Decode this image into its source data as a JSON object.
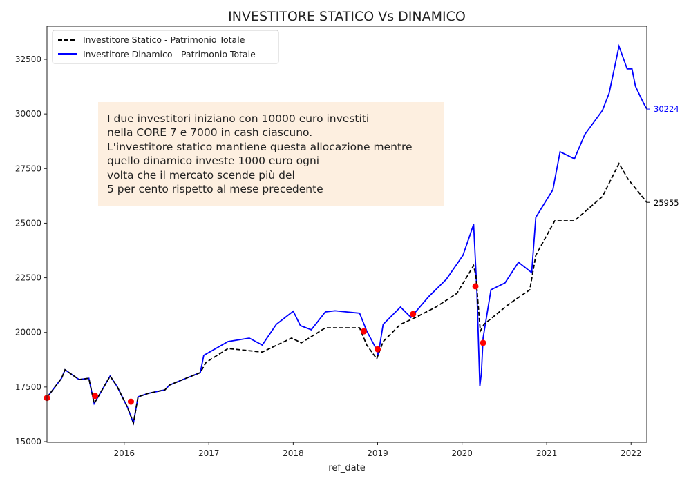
{
  "chart_data": {
    "type": "line",
    "title": "INVESTITORE STATICO Vs DINAMICO",
    "xlabel": "ref_date",
    "ylabel": "",
    "xlim": [
      "2015-02-01",
      "2022-03-10"
    ],
    "ylim": [
      15000,
      34000
    ],
    "x_ticks": [
      "2016",
      "2017",
      "2018",
      "2019",
      "2020",
      "2021",
      "2022"
    ],
    "y_ticks": [
      15000,
      17500,
      20000,
      22500,
      25000,
      27500,
      30000,
      32500
    ],
    "grid": false,
    "legend_placement": "top-left",
    "annotation": [
      "I due investitori iniziano con 10000 euro investiti",
      "nella CORE 7 e 7000 in cash ciascuno.",
      "L'investitore statico mantiene questa allocazione mentre",
      "quello dinamico investe 1000 euro ogni",
      "volta che il mercato scende più del",
      "5 per cento rispetto al mese precedente"
    ],
    "annotation_bg": "#fdefe0",
    "series": [
      {
        "name": "Investitore Statico - Patrimonio Totale",
        "color": "#000000",
        "style": "dashed",
        "end_label": "25955",
        "points": [
          [
            "2015-02-01",
            17020
          ],
          [
            "2015-04-05",
            17900
          ],
          [
            "2015-04-20",
            18290
          ],
          [
            "2015-06-20",
            17840
          ],
          [
            "2015-08-01",
            17900
          ],
          [
            "2015-08-24",
            16740
          ],
          [
            "2015-09-10",
            17050
          ],
          [
            "2015-11-01",
            18000
          ],
          [
            "2015-12-01",
            17530
          ],
          [
            "2016-01-15",
            16580
          ],
          [
            "2016-02-10",
            15850
          ],
          [
            "2016-03-01",
            17050
          ],
          [
            "2016-04-15",
            17210
          ],
          [
            "2016-06-25",
            17370
          ],
          [
            "2016-07-15",
            17590
          ],
          [
            "2016-09-25",
            17900
          ],
          [
            "2016-11-25",
            18160
          ],
          [
            "2016-12-20",
            18630
          ],
          [
            "2017-03-25",
            19260
          ],
          [
            "2017-08-20",
            19100
          ],
          [
            "2017-12-25",
            19740
          ],
          [
            "2018-02-05",
            19520
          ],
          [
            "2018-05-20",
            20210
          ],
          [
            "2018-10-15",
            20210
          ],
          [
            "2018-11-15",
            19420
          ],
          [
            "2018-12-28",
            18790
          ],
          [
            "2019-01-25",
            19580
          ],
          [
            "2019-04-10",
            20370
          ],
          [
            "2019-06-15",
            20690
          ],
          [
            "2019-09-10",
            21160
          ],
          [
            "2019-12-10",
            21790
          ],
          [
            "2020-02-20",
            23060
          ],
          [
            "2020-03-01",
            22590
          ],
          [
            "2020-03-20",
            20060
          ],
          [
            "2020-04-05",
            20370
          ],
          [
            "2020-07-25",
            21320
          ],
          [
            "2020-10-20",
            21950
          ],
          [
            "2020-11-15",
            23530
          ],
          [
            "2021-02-05",
            25110
          ],
          [
            "2021-05-01",
            25110
          ],
          [
            "2021-08-30",
            26220
          ],
          [
            "2021-11-10",
            27730
          ],
          [
            "2021-12-20",
            27000
          ],
          [
            "2022-01-20",
            26600
          ],
          [
            "2022-03-10",
            25955
          ]
        ]
      },
      {
        "name": "Investitore Dinamico - Patrimonio Totale",
        "color": "#0000ff",
        "style": "solid",
        "end_label": "30224",
        "points": [
          [
            "2015-02-01",
            17020
          ],
          [
            "2015-04-05",
            17900
          ],
          [
            "2015-04-20",
            18290
          ],
          [
            "2015-06-20",
            17840
          ],
          [
            "2015-08-01",
            17900
          ],
          [
            "2015-08-24",
            16740
          ],
          [
            "2015-09-10",
            17050
          ],
          [
            "2015-11-01",
            18000
          ],
          [
            "2015-12-01",
            17530
          ],
          [
            "2016-01-15",
            16580
          ],
          [
            "2016-02-10",
            15850
          ],
          [
            "2016-03-01",
            17050
          ],
          [
            "2016-04-15",
            17210
          ],
          [
            "2016-06-25",
            17370
          ],
          [
            "2016-07-15",
            17590
          ],
          [
            "2016-09-25",
            17900
          ],
          [
            "2016-11-25",
            18160
          ],
          [
            "2016-12-10",
            18950
          ],
          [
            "2017-03-25",
            19580
          ],
          [
            "2017-06-25",
            19740
          ],
          [
            "2017-08-20",
            19420
          ],
          [
            "2017-10-20",
            20370
          ],
          [
            "2018-01-01",
            20970
          ],
          [
            "2018-02-01",
            20310
          ],
          [
            "2018-03-20",
            20120
          ],
          [
            "2018-05-20",
            20940
          ],
          [
            "2018-07-01",
            20990
          ],
          [
            "2018-10-15",
            20880
          ],
          [
            "2018-11-15",
            20060
          ],
          [
            "2018-12-25",
            19260
          ],
          [
            "2019-01-03",
            18950
          ],
          [
            "2019-01-25",
            20370
          ],
          [
            "2019-04-10",
            21160
          ],
          [
            "2019-05-25",
            20690
          ],
          [
            "2019-08-10",
            21640
          ],
          [
            "2019-10-25",
            22430
          ],
          [
            "2020-01-05",
            23530
          ],
          [
            "2020-02-05",
            24480
          ],
          [
            "2020-02-20",
            24950
          ],
          [
            "2020-03-05",
            21950
          ],
          [
            "2020-03-18",
            17530
          ],
          [
            "2020-03-25",
            18160
          ],
          [
            "2020-04-01",
            19740
          ],
          [
            "2020-05-05",
            21950
          ],
          [
            "2020-07-05",
            22270
          ],
          [
            "2020-09-01",
            23210
          ],
          [
            "2020-10-28",
            22740
          ],
          [
            "2020-11-15",
            25270
          ],
          [
            "2021-01-28",
            26530
          ],
          [
            "2021-02-28",
            28270
          ],
          [
            "2021-05-01",
            27950
          ],
          [
            "2021-06-15",
            29060
          ],
          [
            "2021-08-30",
            30160
          ],
          [
            "2021-09-28",
            30950
          ],
          [
            "2021-11-10",
            33100
          ],
          [
            "2021-12-15",
            32060
          ],
          [
            "2022-01-05",
            32060
          ],
          [
            "2022-01-20",
            31270
          ],
          [
            "2022-02-10",
            30800
          ],
          [
            "2022-02-25",
            30480
          ],
          [
            "2022-03-10",
            30224
          ]
        ]
      }
    ],
    "purchase_markers": {
      "color": "#ff0000",
      "points": [
        [
          "2015-02-01",
          17000
        ],
        [
          "2015-08-28",
          17090
        ],
        [
          "2016-01-30",
          16830
        ],
        [
          "2018-11-02",
          20050
        ],
        [
          "2019-01-01",
          19230
        ],
        [
          "2019-06-03",
          20840
        ],
        [
          "2020-02-28",
          22110
        ],
        [
          "2020-04-01",
          19520
        ]
      ]
    }
  }
}
